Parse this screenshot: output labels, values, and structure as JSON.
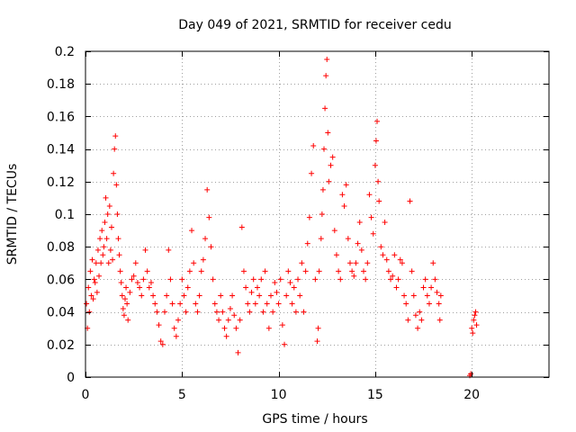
{
  "chart_data": {
    "type": "scatter",
    "title": "Day 049 of 2021, SRMTID for receiver cedu",
    "xlabel": "GPS time / hours",
    "ylabel": "SRMTID / TECUs",
    "xlim": [
      0,
      24
    ],
    "ylim": [
      0,
      0.2
    ],
    "xticks": [
      0,
      5,
      10,
      15,
      20
    ],
    "yticks": [
      0,
      0.02,
      0.04,
      0.06,
      0.08,
      0.1,
      0.12,
      0.14,
      0.16,
      0.18,
      0.2
    ],
    "xtick_labels": [
      "0",
      "5",
      "10",
      "15",
      "20"
    ],
    "ytick_labels": [
      "0",
      "0.02",
      "0.04",
      "0.06",
      "0.08",
      "0.1",
      "0.12",
      "0.14",
      "0.16",
      "0.18",
      "0.2"
    ],
    "grid": true,
    "marker": "+",
    "color": "#ff0000",
    "series": [
      {
        "name": "SRMTID",
        "points": [
          [
            0.05,
            0.045
          ],
          [
            0.1,
            0.03
          ],
          [
            0.15,
            0.055
          ],
          [
            0.2,
            0.04
          ],
          [
            0.25,
            0.065
          ],
          [
            0.3,
            0.05
          ],
          [
            0.35,
            0.072
          ],
          [
            0.4,
            0.048
          ],
          [
            0.45,
            0.06
          ],
          [
            0.5,
            0.058
          ],
          [
            0.55,
            0.07
          ],
          [
            0.6,
            0.052
          ],
          [
            0.65,
            0.078
          ],
          [
            0.7,
            0.062
          ],
          [
            0.75,
            0.085
          ],
          [
            0.8,
            0.07
          ],
          [
            0.85,
            0.09
          ],
          [
            0.9,
            0.075
          ],
          [
            0.95,
            0.08
          ],
          [
            1.0,
            0.095
          ],
          [
            1.05,
            0.11
          ],
          [
            1.1,
            0.085
          ],
          [
            1.15,
            0.1
          ],
          [
            1.2,
            0.07
          ],
          [
            1.25,
            0.105
          ],
          [
            1.3,
            0.078
          ],
          [
            1.35,
            0.092
          ],
          [
            1.4,
            0.072
          ],
          [
            1.45,
            0.125
          ],
          [
            1.5,
            0.14
          ],
          [
            1.55,
            0.148
          ],
          [
            1.6,
            0.118
          ],
          [
            1.65,
            0.1
          ],
          [
            1.7,
            0.085
          ],
          [
            1.75,
            0.075
          ],
          [
            1.8,
            0.065
          ],
          [
            1.85,
            0.058
          ],
          [
            1.9,
            0.05
          ],
          [
            1.95,
            0.042
          ],
          [
            2.0,
            0.038
          ],
          [
            2.05,
            0.048
          ],
          [
            2.1,
            0.055
          ],
          [
            2.15,
            0.045
          ],
          [
            2.2,
            0.035
          ],
          [
            2.3,
            0.052
          ],
          [
            2.4,
            0.06
          ],
          [
            2.5,
            0.062
          ],
          [
            2.6,
            0.07
          ],
          [
            2.7,
            0.058
          ],
          [
            2.8,
            0.055
          ],
          [
            2.9,
            0.05
          ],
          [
            3.0,
            0.06
          ],
          [
            3.1,
            0.078
          ],
          [
            3.2,
            0.065
          ],
          [
            3.3,
            0.055
          ],
          [
            3.4,
            0.058
          ],
          [
            3.5,
            0.05
          ],
          [
            3.6,
            0.045
          ],
          [
            3.7,
            0.04
          ],
          [
            3.8,
            0.032
          ],
          [
            3.9,
            0.022
          ],
          [
            4.0,
            0.02
          ],
          [
            4.1,
            0.04
          ],
          [
            4.2,
            0.05
          ],
          [
            4.3,
            0.078
          ],
          [
            4.4,
            0.06
          ],
          [
            4.5,
            0.045
          ],
          [
            4.6,
            0.03
          ],
          [
            4.7,
            0.025
          ],
          [
            4.8,
            0.035
          ],
          [
            4.9,
            0.045
          ],
          [
            5.0,
            0.06
          ],
          [
            5.1,
            0.05
          ],
          [
            5.2,
            0.04
          ],
          [
            5.3,
            0.055
          ],
          [
            5.4,
            0.065
          ],
          [
            5.5,
            0.09
          ],
          [
            5.6,
            0.07
          ],
          [
            5.7,
            0.045
          ],
          [
            5.8,
            0.04
          ],
          [
            5.9,
            0.05
          ],
          [
            6.0,
            0.065
          ],
          [
            6.1,
            0.072
          ],
          [
            6.2,
            0.085
          ],
          [
            6.3,
            0.115
          ],
          [
            6.4,
            0.098
          ],
          [
            6.5,
            0.08
          ],
          [
            6.6,
            0.06
          ],
          [
            6.7,
            0.045
          ],
          [
            6.8,
            0.04
          ],
          [
            6.9,
            0.035
          ],
          [
            7.0,
            0.05
          ],
          [
            7.1,
            0.04
          ],
          [
            7.2,
            0.03
          ],
          [
            7.3,
            0.025
          ],
          [
            7.4,
            0.035
          ],
          [
            7.5,
            0.042
          ],
          [
            7.6,
            0.05
          ],
          [
            7.7,
            0.038
          ],
          [
            7.8,
            0.03
          ],
          [
            7.9,
            0.015
          ],
          [
            8.0,
            0.035
          ],
          [
            8.1,
            0.092
          ],
          [
            8.2,
            0.065
          ],
          [
            8.3,
            0.055
          ],
          [
            8.4,
            0.045
          ],
          [
            8.5,
            0.04
          ],
          [
            8.6,
            0.052
          ],
          [
            8.7,
            0.06
          ],
          [
            8.8,
            0.045
          ],
          [
            8.9,
            0.055
          ],
          [
            9.0,
            0.05
          ],
          [
            9.1,
            0.06
          ],
          [
            9.2,
            0.04
          ],
          [
            9.3,
            0.065
          ],
          [
            9.4,
            0.045
          ],
          [
            9.5,
            0.03
          ],
          [
            9.6,
            0.05
          ],
          [
            9.7,
            0.04
          ],
          [
            9.8,
            0.058
          ],
          [
            9.9,
            0.052
          ],
          [
            10.0,
            0.045
          ],
          [
            10.1,
            0.06
          ],
          [
            10.2,
            0.032
          ],
          [
            10.3,
            0.02
          ],
          [
            10.4,
            0.05
          ],
          [
            10.5,
            0.065
          ],
          [
            10.6,
            0.058
          ],
          [
            10.7,
            0.045
          ],
          [
            10.8,
            0.055
          ],
          [
            10.9,
            0.04
          ],
          [
            11.0,
            0.06
          ],
          [
            11.1,
            0.05
          ],
          [
            11.2,
            0.07
          ],
          [
            11.3,
            0.04
          ],
          [
            11.4,
            0.065
          ],
          [
            11.5,
            0.082
          ],
          [
            11.6,
            0.098
          ],
          [
            11.7,
            0.125
          ],
          [
            11.8,
            0.142
          ],
          [
            11.9,
            0.06
          ],
          [
            12.0,
            0.022
          ],
          [
            12.05,
            0.03
          ],
          [
            12.1,
            0.065
          ],
          [
            12.2,
            0.085
          ],
          [
            12.25,
            0.1
          ],
          [
            12.3,
            0.115
          ],
          [
            12.35,
            0.14
          ],
          [
            12.4,
            0.165
          ],
          [
            12.45,
            0.185
          ],
          [
            12.5,
            0.195
          ],
          [
            12.55,
            0.15
          ],
          [
            12.6,
            0.12
          ],
          [
            12.7,
            0.13
          ],
          [
            12.8,
            0.135
          ],
          [
            12.9,
            0.09
          ],
          [
            13.0,
            0.075
          ],
          [
            13.1,
            0.065
          ],
          [
            13.2,
            0.06
          ],
          [
            13.3,
            0.112
          ],
          [
            13.4,
            0.105
          ],
          [
            13.5,
            0.118
          ],
          [
            13.6,
            0.085
          ],
          [
            13.7,
            0.07
          ],
          [
            13.8,
            0.065
          ],
          [
            13.9,
            0.062
          ],
          [
            14.0,
            0.07
          ],
          [
            14.1,
            0.082
          ],
          [
            14.2,
            0.095
          ],
          [
            14.3,
            0.078
          ],
          [
            14.4,
            0.065
          ],
          [
            14.5,
            0.06
          ],
          [
            14.6,
            0.07
          ],
          [
            14.7,
            0.112
          ],
          [
            14.8,
            0.098
          ],
          [
            14.9,
            0.088
          ],
          [
            15.0,
            0.13
          ],
          [
            15.05,
            0.145
          ],
          [
            15.1,
            0.157
          ],
          [
            15.15,
            0.12
          ],
          [
            15.2,
            0.108
          ],
          [
            15.3,
            0.08
          ],
          [
            15.4,
            0.075
          ],
          [
            15.5,
            0.095
          ],
          [
            15.6,
            0.072
          ],
          [
            15.7,
            0.065
          ],
          [
            15.8,
            0.06
          ],
          [
            15.9,
            0.062
          ],
          [
            16.0,
            0.075
          ],
          [
            16.1,
            0.055
          ],
          [
            16.2,
            0.06
          ],
          [
            16.3,
            0.072
          ],
          [
            16.4,
            0.07
          ],
          [
            16.5,
            0.05
          ],
          [
            16.6,
            0.045
          ],
          [
            16.7,
            0.035
          ],
          [
            16.8,
            0.108
          ],
          [
            16.9,
            0.065
          ],
          [
            17.0,
            0.05
          ],
          [
            17.1,
            0.038
          ],
          [
            17.2,
            0.03
          ],
          [
            17.3,
            0.04
          ],
          [
            17.4,
            0.035
          ],
          [
            17.5,
            0.055
          ],
          [
            17.6,
            0.06
          ],
          [
            17.7,
            0.05
          ],
          [
            17.8,
            0.045
          ],
          [
            17.9,
            0.055
          ],
          [
            18.0,
            0.07
          ],
          [
            18.1,
            0.06
          ],
          [
            18.2,
            0.052
          ],
          [
            18.3,
            0.045
          ],
          [
            18.35,
            0.035
          ],
          [
            18.4,
            0.05
          ],
          [
            19.9,
            0.001
          ],
          [
            19.95,
            0.002
          ],
          [
            20.0,
            0.03
          ],
          [
            20.05,
            0.027
          ],
          [
            20.1,
            0.035
          ],
          [
            20.15,
            0.038
          ],
          [
            20.2,
            0.04
          ],
          [
            20.25,
            0.032
          ]
        ]
      }
    ]
  }
}
